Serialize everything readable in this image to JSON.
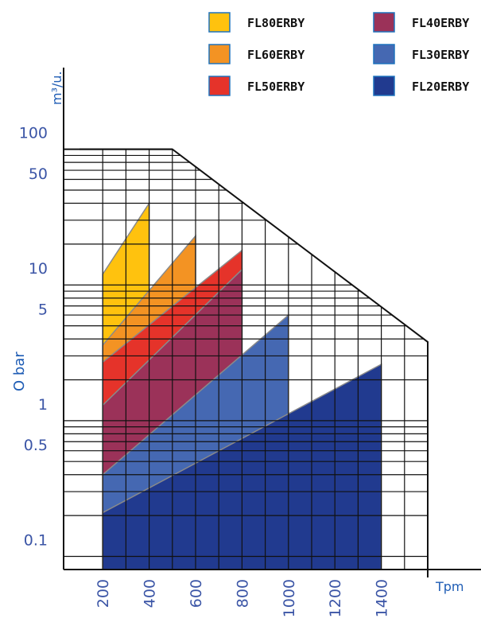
{
  "chart_data": {
    "type": "area",
    "title": "",
    "ylabel": "m³/u.",
    "ylabel_side": "O bar",
    "xlabel": "Tpm",
    "x_ticks": [
      "200",
      "400",
      "600",
      "800",
      "1000",
      "1200",
      "1400"
    ],
    "y_ticks": [
      "100",
      "50",
      "10",
      "5",
      "1",
      "0.5",
      "0.1"
    ],
    "y_scale": "log",
    "xlim": [
      100,
      1600
    ],
    "ylim": [
      0.08,
      105
    ],
    "grid": true,
    "legend_position": "top-right",
    "envelope": [
      [
        100,
        100
      ],
      [
        500,
        100
      ],
      [
        1600,
        3.8
      ],
      [
        1600,
        0.08
      ]
    ],
    "series": [
      {
        "name": "FL80ERBY",
        "color": "#ffc20e",
        "x_min": 200,
        "x_max": 400,
        "y_start": 12,
        "y_end": 40
      },
      {
        "name": "FL60ERBY",
        "color": "#f39323",
        "x_min": 200,
        "x_max": 600,
        "y_start": 3.6,
        "y_end": 23
      },
      {
        "name": "FL50ERBY",
        "color": "#e5332a",
        "x_min": 200,
        "x_max": 800,
        "y_start": 2.7,
        "y_end": 18
      },
      {
        "name": "FL40ERBY",
        "color": "#9b3259",
        "x_min": 200,
        "x_max": 800,
        "y_start": 1.3,
        "y_end": 13
      },
      {
        "name": "FL30ERBY",
        "color": "#4568b2",
        "x_min": 200,
        "x_max": 1000,
        "y_start": 0.4,
        "y_end": 6
      },
      {
        "name": "FL20ERBY",
        "color": "#213a8f",
        "x_min": 200,
        "x_max": 1400,
        "y_start": 0.21,
        "y_end": 2.6
      }
    ]
  }
}
